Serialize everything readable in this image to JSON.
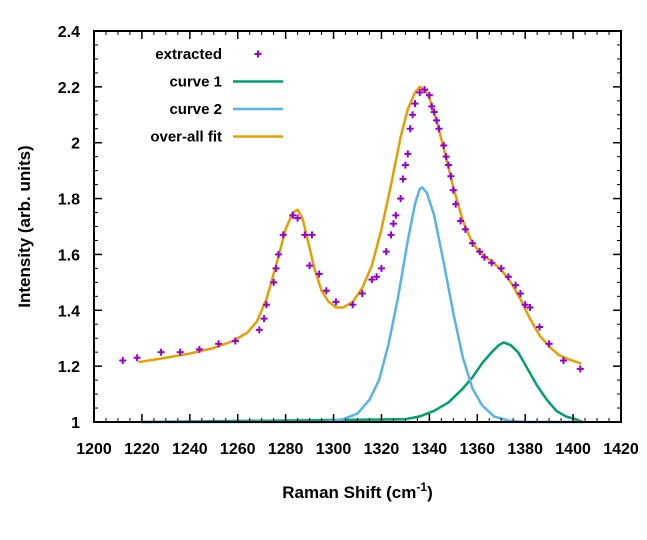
{
  "chart_data": {
    "type": "line",
    "xlabel": "Raman Shift (cm",
    "xlabel_sup": "-1",
    "xlabel_suffix": ")",
    "ylabel": "Intensity (arb. units)",
    "xlim": [
      1200,
      1420
    ],
    "ylim": [
      1.0,
      2.4
    ],
    "x_ticks": [
      1200,
      1220,
      1240,
      1260,
      1280,
      1300,
      1320,
      1340,
      1360,
      1380,
      1400,
      1420
    ],
    "y_ticks": [
      1,
      1.2,
      1.4,
      1.6,
      1.8,
      2,
      2.2,
      2.4
    ],
    "y_tick_labels": [
      "1",
      "1.2",
      "1.4",
      "1.6",
      "1.8",
      "2",
      "2.2",
      "2.4"
    ],
    "legend_position": "top-left",
    "grid": false,
    "series": [
      {
        "name": "extracted",
        "kind": "points",
        "color": "#9400d3",
        "x": [
          1212,
          1218,
          1228,
          1236,
          1244,
          1252,
          1259,
          1269,
          1271,
          1272,
          1275,
          1276,
          1277,
          1279,
          1283,
          1285,
          1288,
          1290,
          1291,
          1294,
          1297,
          1301,
          1308,
          1312,
          1316,
          1318,
          1320,
          1322,
          1324,
          1325,
          1326,
          1328,
          1329,
          1330,
          1331,
          1332,
          1333,
          1334,
          1336,
          1338,
          1340,
          1341,
          1342,
          1343,
          1344,
          1346,
          1347,
          1348,
          1349,
          1350,
          1351,
          1353,
          1355,
          1358,
          1361,
          1363,
          1366,
          1370,
          1373,
          1376,
          1378,
          1380,
          1382,
          1386,
          1390,
          1396,
          1403
        ],
        "y": [
          1.22,
          1.23,
          1.25,
          1.25,
          1.26,
          1.28,
          1.29,
          1.33,
          1.37,
          1.42,
          1.5,
          1.55,
          1.6,
          1.67,
          1.74,
          1.73,
          1.67,
          1.56,
          1.67,
          1.53,
          1.47,
          1.43,
          1.42,
          1.46,
          1.51,
          1.52,
          1.55,
          1.61,
          1.67,
          1.71,
          1.74,
          1.8,
          1.87,
          1.92,
          1.96,
          2.05,
          2.1,
          2.14,
          2.18,
          2.19,
          2.17,
          2.13,
          2.11,
          2.08,
          2.05,
          1.99,
          1.95,
          1.92,
          1.88,
          1.83,
          1.78,
          1.72,
          1.69,
          1.64,
          1.61,
          1.59,
          1.57,
          1.55,
          1.52,
          1.49,
          1.46,
          1.42,
          1.41,
          1.34,
          1.28,
          1.22,
          1.19
        ]
      },
      {
        "name": "curve 1",
        "kind": "line",
        "color": "#009e73",
        "x": [
          1220,
          1330,
          1336,
          1342,
          1348,
          1354,
          1358,
          1362,
          1366,
          1369,
          1371,
          1374,
          1377,
          1381,
          1385,
          1389,
          1393,
          1397,
          1401,
          1404
        ],
        "y": [
          1.0,
          1.01,
          1.02,
          1.04,
          1.07,
          1.12,
          1.16,
          1.21,
          1.25,
          1.275,
          1.285,
          1.275,
          1.25,
          1.19,
          1.13,
          1.08,
          1.04,
          1.02,
          1.01,
          1.0
        ]
      },
      {
        "name": "curve 2",
        "kind": "line",
        "color": "#56b4e9",
        "x": [
          1220,
          1296,
          1304,
          1310,
          1315,
          1319,
          1323,
          1327,
          1331,
          1334,
          1336,
          1337,
          1339,
          1342,
          1346,
          1350,
          1354,
          1358,
          1362,
          1367,
          1373,
          1380,
          1404
        ],
        "y": [
          1.0,
          1.0,
          1.01,
          1.03,
          1.08,
          1.15,
          1.28,
          1.45,
          1.65,
          1.78,
          1.835,
          1.84,
          1.82,
          1.74,
          1.57,
          1.39,
          1.23,
          1.12,
          1.06,
          1.02,
          1.005,
          1.0,
          1.0
        ]
      },
      {
        "name": "over-all fit",
        "kind": "line",
        "color": "#e69f00",
        "x": [
          1219,
          1230,
          1240,
          1250,
          1258,
          1264,
          1268,
          1272,
          1276,
          1280,
          1283,
          1285,
          1287,
          1289,
          1292,
          1295,
          1298,
          1301,
          1304,
          1308,
          1312,
          1316,
          1320,
          1324,
          1328,
          1331,
          1334,
          1336,
          1338,
          1340,
          1343,
          1346,
          1350,
          1354,
          1358,
          1362,
          1366,
          1370,
          1374,
          1378,
          1382,
          1386,
          1390,
          1394,
          1398,
          1403
        ],
        "y": [
          1.215,
          1.23,
          1.245,
          1.265,
          1.29,
          1.32,
          1.36,
          1.44,
          1.56,
          1.69,
          1.75,
          1.76,
          1.73,
          1.66,
          1.55,
          1.47,
          1.43,
          1.41,
          1.41,
          1.43,
          1.48,
          1.56,
          1.69,
          1.85,
          2.02,
          2.12,
          2.18,
          2.2,
          2.19,
          2.16,
          2.08,
          1.98,
          1.84,
          1.72,
          1.64,
          1.6,
          1.575,
          1.545,
          1.5,
          1.44,
          1.37,
          1.31,
          1.27,
          1.24,
          1.225,
          1.21
        ]
      }
    ]
  }
}
